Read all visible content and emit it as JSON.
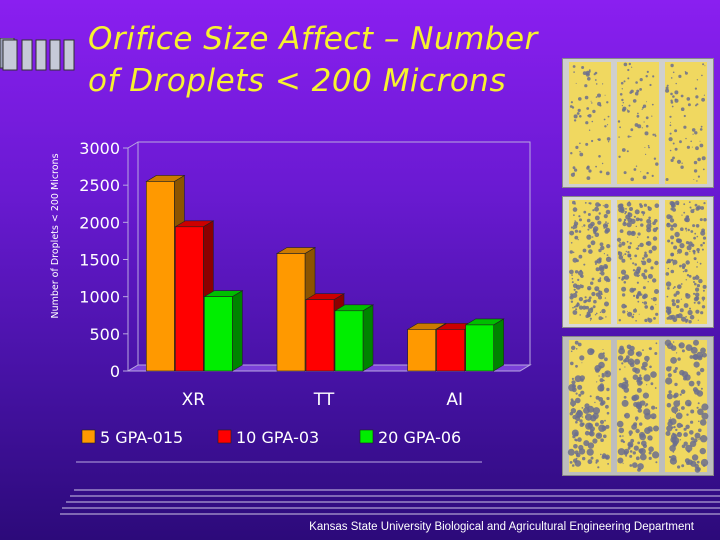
{
  "slide": {
    "title_line1": "Orifice Size Affect – Number",
    "title_line2": "of Droplets < 200 Microns",
    "footer": "Kansas State University Biological and Agricultural Engineering Department"
  },
  "photos": {
    "row1_caption": "",
    "colors": {
      "paper": "#f0d860",
      "droplet": "#6b6f8e"
    }
  },
  "chart_data": {
    "type": "bar",
    "title": "",
    "xlabel": "",
    "ylabel": "Number of Droplets < 200 Microns",
    "ylim": [
      0,
      3000
    ],
    "yticks": [
      0,
      500,
      1000,
      1500,
      2000,
      2500,
      3000
    ],
    "categories": [
      "XR",
      "TT",
      "AI"
    ],
    "series": [
      {
        "name": "5 GPA-015",
        "values": [
          2550,
          1580,
          560
        ],
        "color": "#ff9900"
      },
      {
        "name": "10 GPA-03",
        "values": [
          1940,
          960,
          560
        ],
        "color": "#ff0000"
      },
      {
        "name": "20 GPA-06",
        "values": [
          1000,
          810,
          620
        ],
        "color": "#00ee00"
      }
    ],
    "legend_position": "bottom",
    "grid": false
  }
}
